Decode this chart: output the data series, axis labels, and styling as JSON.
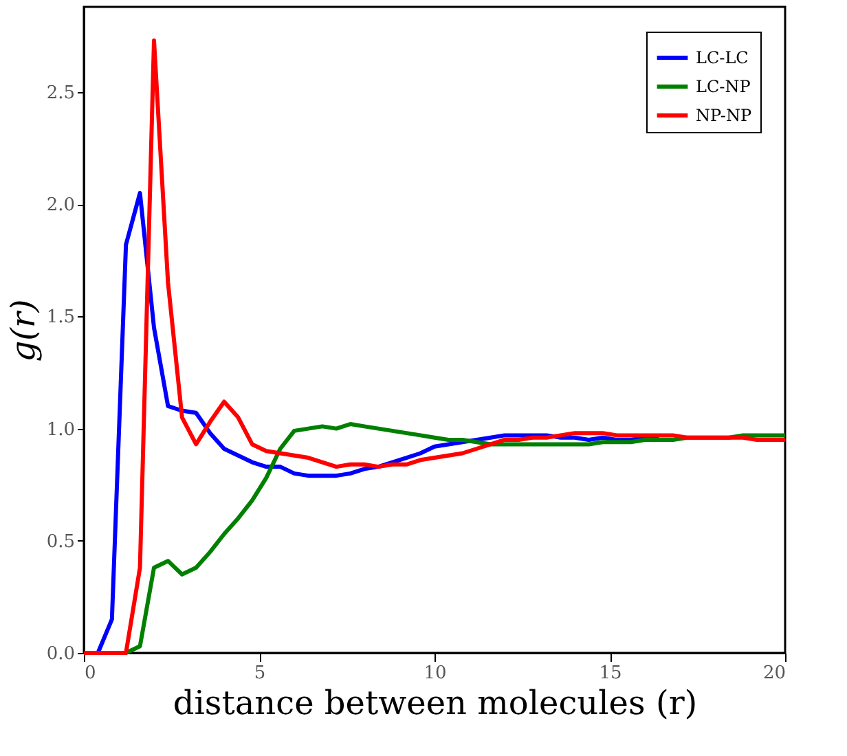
{
  "chart_data": {
    "type": "line",
    "xlabel": "distance between molecules (r)",
    "ylabel": "g(r)",
    "x": [
      0,
      0.4,
      0.8,
      1.2,
      1.6,
      2.0,
      2.4,
      2.8,
      3.2,
      3.6,
      4.0,
      4.4,
      4.8,
      5.2,
      5.6,
      6.0,
      6.4,
      6.8,
      7.2,
      7.6,
      8.0,
      8.4,
      8.8,
      9.2,
      9.6,
      10,
      10.4,
      10.8,
      11.2,
      11.6,
      12,
      12.4,
      12.8,
      13.2,
      13.6,
      14,
      14.4,
      14.8,
      15.2,
      15.6,
      16,
      16.4,
      16.8,
      17.2,
      17.6,
      18,
      18.4,
      18.8,
      19.2,
      19.6,
      20
    ],
    "series": [
      {
        "name": "LC-LC",
        "color": "#0000ff",
        "values": [
          0,
          0,
          0.15,
          1.82,
          2.05,
          1.45,
          1.1,
          1.08,
          1.07,
          0.98,
          0.91,
          0.88,
          0.85,
          0.83,
          0.83,
          0.8,
          0.79,
          0.79,
          0.79,
          0.8,
          0.82,
          0.83,
          0.85,
          0.87,
          0.89,
          0.92,
          0.93,
          0.94,
          0.95,
          0.96,
          0.97,
          0.97,
          0.97,
          0.97,
          0.96,
          0.96,
          0.95,
          0.96,
          0.95,
          0.95,
          0.96,
          0.96,
          null,
          null,
          null,
          null,
          null,
          null,
          null,
          null,
          null
        ]
      },
      {
        "name": "LC-NP",
        "color": "#008000",
        "values": [
          null,
          null,
          0,
          0,
          0.03,
          0.38,
          0.41,
          0.35,
          0.38,
          0.45,
          0.53,
          0.6,
          0.68,
          0.78,
          0.91,
          0.99,
          1.0,
          1.01,
          1.0,
          1.02,
          1.01,
          1.0,
          0.99,
          0.98,
          0.97,
          0.96,
          0.95,
          0.95,
          0.94,
          0.93,
          0.93,
          0.93,
          0.93,
          0.93,
          0.93,
          0.93,
          0.93,
          0.94,
          0.94,
          0.94,
          0.95,
          0.95,
          0.95,
          0.96,
          0.96,
          0.96,
          0.96,
          0.97,
          0.97,
          0.97,
          0.97
        ]
      },
      {
        "name": "NP-NP",
        "color": "#ff0000",
        "values": [
          0,
          0,
          0,
          0,
          0.38,
          2.73,
          1.65,
          1.05,
          0.93,
          1.03,
          1.12,
          1.05,
          0.93,
          0.9,
          0.89,
          0.88,
          0.87,
          0.85,
          0.83,
          0.84,
          0.84,
          0.83,
          0.84,
          0.84,
          0.86,
          0.87,
          0.88,
          0.89,
          0.91,
          0.93,
          0.95,
          0.95,
          0.96,
          0.96,
          0.97,
          0.98,
          0.98,
          0.98,
          0.97,
          0.97,
          0.97,
          0.97,
          0.97,
          0.96,
          0.96,
          0.96,
          0.96,
          0.96,
          0.95,
          0.95,
          0.95
        ]
      }
    ],
    "xlim": [
      0,
      20
    ],
    "xticks": [
      0,
      5,
      10,
      15,
      20
    ],
    "ylim": [
      0,
      2.88
    ],
    "yticks": [
      {
        "value": 0,
        "label": "0.0"
      },
      {
        "value": 0.5,
        "label": "0.5"
      },
      {
        "value": 1,
        "label": "1.0"
      },
      {
        "value": 1.5,
        "label": "1.5"
      },
      {
        "value": 2,
        "label": "2.0"
      },
      {
        "value": 2.5,
        "label": "2.5"
      }
    ],
    "grid": false,
    "legend": "top right",
    "marker": "none",
    "line_style": "solid"
  }
}
